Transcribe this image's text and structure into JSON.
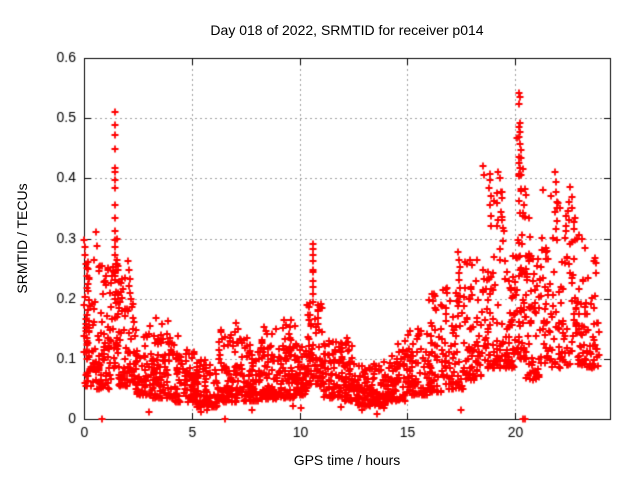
{
  "figure": {
    "background": "#ffffff",
    "border_color": "#000000",
    "text_color": "#000000"
  },
  "chart_data": {
    "type": "scatter",
    "title": "Day 018 of 2022, SRMTID for receiver p014",
    "xlabel": "GPS time / hours",
    "ylabel": "SRMTID / TECUs",
    "series_name": "SRMTID",
    "xlim": [
      0,
      24.4
    ],
    "ylim": [
      0,
      0.6
    ],
    "xticks": [
      {
        "v": 0,
        "label": "0"
      },
      {
        "v": 5,
        "label": "5"
      },
      {
        "v": 10,
        "label": "10"
      },
      {
        "v": 15,
        "label": "15"
      },
      {
        "v": 20,
        "label": "20"
      }
    ],
    "yticks": [
      {
        "v": 0.0,
        "label": "0"
      },
      {
        "v": 0.1,
        "label": "0.1"
      },
      {
        "v": 0.2,
        "label": "0.2"
      },
      {
        "v": 0.3,
        "label": "0.3"
      },
      {
        "v": 0.4,
        "label": "0.4"
      },
      {
        "v": 0.5,
        "label": "0.5"
      },
      {
        "v": 0.6,
        "label": "0.6"
      }
    ],
    "grid": true,
    "grid_color": "#a0a0a0",
    "legend": "none",
    "marker": {
      "shape": "plus",
      "size": 7,
      "color": "#ff0000"
    },
    "seed": 2022018,
    "notable_points": [
      [
        0.02,
        0.298
      ],
      [
        0.05,
        0.272
      ],
      [
        0.45,
        0.265
      ],
      [
        0.56,
        0.31
      ],
      [
        0.62,
        0.287
      ],
      [
        0.7,
        0.252
      ],
      [
        1.43,
        0.51
      ],
      [
        1.44,
        0.488
      ],
      [
        1.44,
        0.472
      ],
      [
        1.45,
        0.449
      ],
      [
        1.43,
        0.418
      ],
      [
        1.45,
        0.411
      ],
      [
        1.44,
        0.397
      ],
      [
        1.45,
        0.384
      ],
      [
        1.44,
        0.356
      ],
      [
        1.43,
        0.334
      ],
      [
        1.44,
        0.312
      ],
      [
        1.46,
        0.298
      ],
      [
        1.43,
        0.286
      ],
      [
        1.45,
        0.272
      ],
      [
        1.47,
        0.258
      ],
      [
        1.42,
        0.243
      ],
      [
        1.46,
        0.231
      ],
      [
        1.55,
        0.265
      ],
      [
        1.58,
        0.248
      ],
      [
        1.62,
        0.228
      ],
      [
        1.6,
        0.21
      ],
      [
        1.65,
        0.195
      ],
      [
        2.06,
        0.262
      ],
      [
        2.1,
        0.247
      ],
      [
        2.12,
        0.233
      ],
      [
        2.08,
        0.221
      ],
      [
        2.14,
        0.21
      ],
      [
        2.18,
        0.2
      ],
      [
        3.05,
        0.155
      ],
      [
        3.35,
        0.168
      ],
      [
        3.9,
        0.163
      ],
      [
        4.35,
        0.138
      ],
      [
        6.35,
        0.148
      ],
      [
        7.05,
        0.16
      ],
      [
        7.15,
        0.15
      ],
      [
        7.55,
        0.135
      ],
      [
        8.35,
        0.153
      ],
      [
        8.45,
        0.146
      ],
      [
        9.28,
        0.165
      ],
      [
        9.35,
        0.156
      ],
      [
        10.62,
        0.291
      ],
      [
        10.63,
        0.282
      ],
      [
        10.64,
        0.273
      ],
      [
        10.63,
        0.263
      ],
      [
        10.62,
        0.247
      ],
      [
        10.64,
        0.244
      ],
      [
        10.63,
        0.229
      ],
      [
        10.64,
        0.219
      ],
      [
        10.63,
        0.207
      ],
      [
        10.62,
        0.195
      ],
      [
        10.45,
        0.186
      ],
      [
        10.48,
        0.173
      ],
      [
        10.42,
        0.165
      ],
      [
        10.52,
        0.158
      ],
      [
        12.18,
        0.134
      ],
      [
        12.24,
        0.128
      ],
      [
        14.55,
        0.125
      ],
      [
        14.9,
        0.13
      ],
      [
        16.12,
        0.208
      ],
      [
        16.2,
        0.196
      ],
      [
        16.28,
        0.184
      ],
      [
        17.37,
        0.278
      ],
      [
        17.4,
        0.265
      ],
      [
        17.42,
        0.252
      ],
      [
        17.39,
        0.242
      ],
      [
        17.41,
        0.231
      ],
      [
        17.43,
        0.217
      ],
      [
        17.36,
        0.205
      ],
      [
        18.52,
        0.42
      ],
      [
        18.56,
        0.405
      ],
      [
        18.82,
        0.408
      ],
      [
        18.85,
        0.397
      ],
      [
        18.8,
        0.384
      ],
      [
        18.88,
        0.371
      ],
      [
        18.83,
        0.355
      ],
      [
        18.86,
        0.337
      ],
      [
        18.9,
        0.321
      ],
      [
        19.2,
        0.41
      ],
      [
        19.32,
        0.4
      ],
      [
        19.36,
        0.377
      ],
      [
        19.4,
        0.367
      ],
      [
        19.33,
        0.344
      ],
      [
        19.38,
        0.336
      ],
      [
        19.42,
        0.317
      ],
      [
        19.45,
        0.296
      ],
      [
        20.18,
        0.542
      ],
      [
        20.22,
        0.535
      ],
      [
        20.2,
        0.524
      ],
      [
        20.21,
        0.492
      ],
      [
        20.19,
        0.486
      ],
      [
        20.23,
        0.477
      ],
      [
        20.2,
        0.468
      ],
      [
        20.22,
        0.457
      ],
      [
        20.18,
        0.436
      ],
      [
        20.2,
        0.426
      ],
      [
        20.24,
        0.418
      ],
      [
        20.19,
        0.408
      ],
      [
        20.26,
        0.382
      ],
      [
        20.16,
        0.362
      ],
      [
        20.21,
        0.342
      ],
      [
        20.65,
        0.334
      ],
      [
        20.68,
        0.302
      ],
      [
        21.85,
        0.41
      ],
      [
        21.88,
        0.394
      ],
      [
        21.9,
        0.377
      ],
      [
        21.92,
        0.361
      ],
      [
        21.87,
        0.344
      ],
      [
        21.93,
        0.329
      ],
      [
        22.38,
        0.338
      ],
      [
        22.48,
        0.36
      ],
      [
        22.56,
        0.385
      ],
      [
        22.62,
        0.369
      ],
      [
        22.66,
        0.35
      ],
      [
        22.52,
        0.33
      ],
      [
        22.75,
        0.315
      ],
      [
        22.85,
        0.3
      ],
      [
        23.1,
        0.3
      ],
      [
        23.25,
        0.285
      ],
      [
        0.84,
        0.0
      ],
      [
        6.54,
        0.0
      ],
      [
        20.36,
        0.0
      ],
      [
        20.48,
        0.0
      ],
      [
        3.0,
        0.012
      ],
      [
        5.25,
        0.02
      ],
      [
        5.45,
        0.012
      ],
      [
        5.6,
        0.025
      ],
      [
        5.72,
        0.015
      ],
      [
        6.05,
        0.02
      ],
      [
        7.8,
        0.015
      ],
      [
        9.7,
        0.022
      ],
      [
        10.05,
        0.018
      ],
      [
        11.9,
        0.02
      ],
      [
        12.9,
        0.015
      ],
      [
        13.6,
        0.008
      ],
      [
        13.75,
        0.025
      ],
      [
        13.9,
        0.018
      ],
      [
        17.5,
        0.015
      ]
    ],
    "density_bands": [
      [
        0.0,
        0.25,
        0.1,
        0.3,
        28,
        1.2
      ],
      [
        0.05,
        0.55,
        0.055,
        0.2,
        40,
        1.8
      ],
      [
        0.55,
        1.3,
        0.05,
        0.26,
        70,
        2.0
      ],
      [
        1.3,
        1.6,
        0.08,
        0.3,
        30,
        1.4
      ],
      [
        1.6,
        2.05,
        0.055,
        0.24,
        40,
        1.9
      ],
      [
        2.05,
        2.35,
        0.06,
        0.21,
        26,
        1.7
      ],
      [
        2.35,
        3.2,
        0.04,
        0.15,
        70,
        2.0
      ],
      [
        3.2,
        4.2,
        0.035,
        0.16,
        90,
        2.2
      ],
      [
        4.2,
        5.2,
        0.028,
        0.115,
        85,
        1.9
      ],
      [
        5.2,
        6.2,
        0.02,
        0.1,
        85,
        1.8
      ],
      [
        6.2,
        7.5,
        0.028,
        0.145,
        110,
        2.0
      ],
      [
        7.5,
        8.2,
        0.03,
        0.125,
        70,
        1.9
      ],
      [
        8.2,
        9.0,
        0.033,
        0.15,
        80,
        2.0
      ],
      [
        9.0,
        9.8,
        0.035,
        0.165,
        75,
        2.1
      ],
      [
        9.8,
        10.35,
        0.04,
        0.125,
        55,
        1.9
      ],
      [
        10.35,
        11.1,
        0.055,
        0.2,
        70,
        2.0
      ],
      [
        11.1,
        12.0,
        0.035,
        0.13,
        75,
        1.9
      ],
      [
        12.0,
        12.6,
        0.03,
        0.135,
        55,
        2.0
      ],
      [
        12.6,
        14.0,
        0.022,
        0.095,
        115,
        1.8
      ],
      [
        14.0,
        15.0,
        0.03,
        0.115,
        85,
        1.9
      ],
      [
        15.0,
        16.0,
        0.04,
        0.15,
        80,
        2.0
      ],
      [
        16.0,
        16.6,
        0.045,
        0.21,
        50,
        2.1
      ],
      [
        16.6,
        17.6,
        0.05,
        0.22,
        70,
        2.1
      ],
      [
        17.6,
        18.5,
        0.065,
        0.27,
        70,
        1.9
      ],
      [
        18.5,
        19.6,
        0.085,
        0.38,
        80,
        1.9
      ],
      [
        19.6,
        20.1,
        0.085,
        0.3,
        50,
        1.8
      ],
      [
        20.1,
        20.5,
        0.1,
        0.47,
        55,
        1.5
      ],
      [
        20.5,
        21.2,
        0.065,
        0.3,
        60,
        1.8
      ],
      [
        21.2,
        22.2,
        0.085,
        0.38,
        70,
        1.9
      ],
      [
        22.2,
        23.0,
        0.09,
        0.36,
        60,
        1.9
      ],
      [
        23.0,
        23.9,
        0.085,
        0.28,
        65,
        2.0
      ]
    ]
  }
}
